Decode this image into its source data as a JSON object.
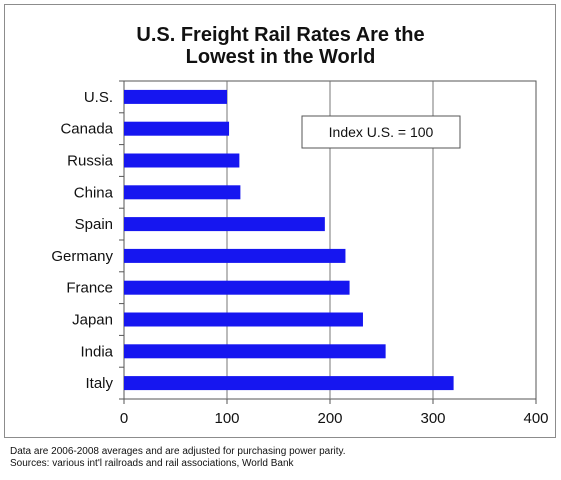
{
  "chart_data": {
    "type": "bar",
    "orientation": "horizontal",
    "title_lines": [
      "U.S. Freight Rail Rates Are the",
      "Lowest in the World"
    ],
    "categories": [
      "U.S.",
      "Canada",
      "Russia",
      "China",
      "Spain",
      "Germany",
      "France",
      "Japan",
      "India",
      "Italy"
    ],
    "values": [
      100,
      102,
      112,
      113,
      195,
      215,
      219,
      232,
      254,
      320
    ],
    "xlim": [
      0,
      400
    ],
    "xticks": [
      0,
      100,
      200,
      300,
      400
    ],
    "grid": "vertical",
    "bar_color": "#1616f0",
    "annotation": "Index U.S. = 100"
  },
  "notes": {
    "line1": "Data are 2006-2008 averages and are adjusted for purchasing power parity.",
    "line2": "Sources: various int'l railroads and rail associations, World Bank"
  }
}
